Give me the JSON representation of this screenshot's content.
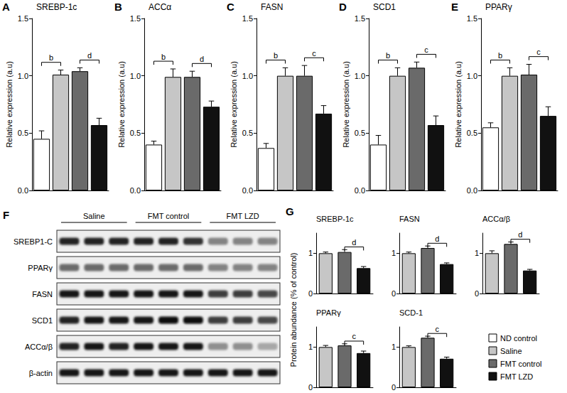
{
  "chart_data": [
    {
      "type": "bar",
      "panel": "A",
      "title": "SREBP-1c",
      "y_label": "Relative expression (a.u)",
      "categories": [
        "ND control",
        "Saline",
        "FMT control",
        "FMT LZD"
      ],
      "colors": [
        "#ffffff",
        "#c6c6c6",
        "#6a6a6a",
        "#111111"
      ],
      "values": [
        0.45,
        1.01,
        1.04,
        0.57
      ],
      "errors": [
        0.07,
        0.04,
        0.03,
        0.06
      ],
      "ylim": [
        0,
        1.5
      ],
      "yticks": [
        {
          "value": 0,
          "label": "0.0"
        },
        {
          "value": 0.5,
          "label": "0.5"
        },
        {
          "value": 1,
          "label": "1.0"
        },
        {
          "value": 1.5,
          "label": "1.5"
        }
      ],
      "significance": [
        {
          "between": [
            0,
            1
          ],
          "label": "b"
        },
        {
          "between": [
            2,
            3
          ],
          "label": "d"
        }
      ],
      "grid": false,
      "tick_labels": "y"
    },
    {
      "type": "bar",
      "panel": "B",
      "title": "ACCα",
      "y_label": "Relative expression (a.u)",
      "categories": [
        "ND control",
        "Saline",
        "FMT control",
        "FMT LZD"
      ],
      "colors": [
        "#ffffff",
        "#c6c6c6",
        "#6a6a6a",
        "#111111"
      ],
      "values": [
        0.4,
        0.99,
        0.99,
        0.73
      ],
      "errors": [
        0.03,
        0.07,
        0.05,
        0.05
      ],
      "ylim": [
        0,
        1.5
      ],
      "yticks": [
        {
          "value": 0,
          "label": "0.0"
        },
        {
          "value": 0.5,
          "label": "0.5"
        },
        {
          "value": 1,
          "label": "1.0"
        },
        {
          "value": 1.5,
          "label": "1.5"
        }
      ],
      "significance": [
        {
          "between": [
            0,
            1
          ],
          "label": "b"
        },
        {
          "between": [
            2,
            3
          ],
          "label": "d"
        }
      ],
      "grid": false,
      "tick_labels": "y"
    },
    {
      "type": "bar",
      "panel": "C",
      "title": "FASN",
      "y_label": "Relative expression (a.u)",
      "categories": [
        "ND control",
        "Saline",
        "FMT control",
        "FMT LZD"
      ],
      "colors": [
        "#ffffff",
        "#c6c6c6",
        "#6a6a6a",
        "#111111"
      ],
      "values": [
        0.37,
        1.0,
        1.0,
        0.67
      ],
      "errors": [
        0.04,
        0.07,
        0.09,
        0.07
      ],
      "ylim": [
        0,
        1.5
      ],
      "yticks": [
        {
          "value": 0,
          "label": "0.0"
        },
        {
          "value": 0.5,
          "label": "0.5"
        },
        {
          "value": 1,
          "label": "1.0"
        },
        {
          "value": 1.5,
          "label": "1.5"
        }
      ],
      "significance": [
        {
          "between": [
            0,
            1
          ],
          "label": "b"
        },
        {
          "between": [
            2,
            3
          ],
          "label": "c"
        }
      ],
      "grid": false,
      "tick_labels": "y"
    },
    {
      "type": "bar",
      "panel": "D",
      "title": "SCD1",
      "y_label": "Relative expression (a.u)",
      "categories": [
        "ND control",
        "Saline",
        "FMT control",
        "FMT LZD"
      ],
      "colors": [
        "#ffffff",
        "#c6c6c6",
        "#6a6a6a",
        "#111111"
      ],
      "values": [
        0.4,
        1.0,
        1.07,
        0.57
      ],
      "errors": [
        0.08,
        0.07,
        0.05,
        0.08
      ],
      "ylim": [
        0,
        1.5
      ],
      "yticks": [
        {
          "value": 0,
          "label": "0.0"
        },
        {
          "value": 0.5,
          "label": "0.5"
        },
        {
          "value": 1,
          "label": "1.0"
        },
        {
          "value": 1.5,
          "label": "1.5"
        }
      ],
      "significance": [
        {
          "between": [
            0,
            1
          ],
          "label": "b"
        },
        {
          "between": [
            2,
            3
          ],
          "label": "c"
        }
      ],
      "grid": false,
      "tick_labels": "y"
    },
    {
      "type": "bar",
      "panel": "E",
      "title": "PPARγ",
      "y_label": "Relative expression (a.u)",
      "categories": [
        "ND control",
        "Saline",
        "FMT control",
        "FMT LZD"
      ],
      "colors": [
        "#ffffff",
        "#c6c6c6",
        "#6a6a6a",
        "#111111"
      ],
      "values": [
        0.55,
        1.0,
        1.01,
        0.65
      ],
      "errors": [
        0.04,
        0.07,
        0.09,
        0.08
      ],
      "ylim": [
        0,
        1.5
      ],
      "yticks": [
        {
          "value": 0,
          "label": "0.0"
        },
        {
          "value": 0.5,
          "label": "0.5"
        },
        {
          "value": 1,
          "label": "1.0"
        },
        {
          "value": 1.5,
          "label": "1.5"
        }
      ],
      "significance": [
        {
          "between": [
            0,
            1
          ],
          "label": "b"
        },
        {
          "between": [
            2,
            3
          ],
          "label": "c"
        }
      ],
      "grid": false,
      "tick_labels": "y"
    },
    {
      "type": "bar",
      "title": "SREBP-1c",
      "categories": [
        "Saline",
        "FMT control",
        "FMT LZD"
      ],
      "colors": [
        "#c6c6c6",
        "#6a6a6a",
        "#111111"
      ],
      "values": [
        1.0,
        1.03,
        0.63
      ],
      "errors": [
        0.03,
        0.06,
        0.04
      ],
      "ylim": [
        0,
        1.5
      ],
      "yticks": [
        0,
        1
      ],
      "significance": [
        {
          "between": [
            1,
            2
          ],
          "label": "d"
        }
      ],
      "grid": false,
      "tick_labels": "y"
    },
    {
      "type": "bar",
      "title": "FASN",
      "categories": [
        "Saline",
        "FMT control",
        "FMT LZD"
      ],
      "colors": [
        "#c6c6c6",
        "#6a6a6a",
        "#111111"
      ],
      "values": [
        1.0,
        1.13,
        0.73
      ],
      "errors": [
        0.03,
        0.05,
        0.03
      ],
      "ylim": [
        0,
        1.5
      ],
      "yticks": [
        0,
        1
      ],
      "significance": [
        {
          "between": [
            1,
            2
          ],
          "label": "d"
        }
      ],
      "grid": false,
      "tick_labels": "y"
    },
    {
      "type": "bar",
      "title": "ACCα/β",
      "categories": [
        "Saline",
        "FMT control",
        "FMT LZD"
      ],
      "colors": [
        "#c6c6c6",
        "#6a6a6a",
        "#111111"
      ],
      "values": [
        1.0,
        1.23,
        0.57
      ],
      "errors": [
        0.06,
        0.05,
        0.03
      ],
      "ylim": [
        0,
        1.5
      ],
      "yticks": [
        0,
        1
      ],
      "significance": [
        {
          "between": [
            1,
            2
          ],
          "label": "d"
        }
      ],
      "grid": false,
      "tick_labels": "y"
    },
    {
      "type": "bar",
      "title": "PPARγ",
      "categories": [
        "Saline",
        "FMT control",
        "FMT LZD"
      ],
      "colors": [
        "#c6c6c6",
        "#6a6a6a",
        "#111111"
      ],
      "values": [
        1.0,
        1.04,
        0.85
      ],
      "errors": [
        0.04,
        0.04,
        0.05
      ],
      "ylim": [
        0,
        1.5
      ],
      "yticks": [
        0,
        1
      ],
      "significance": [
        {
          "between": [
            1,
            2
          ],
          "label": "c"
        }
      ],
      "grid": false,
      "tick_labels": "y"
    },
    {
      "type": "bar",
      "title": "SCD-1",
      "categories": [
        "Saline",
        "FMT control",
        "FMT LZD"
      ],
      "colors": [
        "#c6c6c6",
        "#6a6a6a",
        "#111111"
      ],
      "values": [
        1.0,
        1.23,
        0.71
      ],
      "errors": [
        0.03,
        0.04,
        0.04
      ],
      "ylim": [
        0,
        1.5
      ],
      "yticks": [
        0,
        1
      ],
      "significance": [
        {
          "between": [
            1,
            2
          ],
          "label": "c"
        }
      ],
      "grid": false,
      "tick_labels": "y"
    }
  ],
  "protein_panel": {
    "panel": "G",
    "y_label": "Protein abundance (% of control)"
  },
  "legend_key": {
    "labels": [
      "ND control",
      "Saline",
      "FMT control",
      "FMT LZD"
    ],
    "colors": [
      "#ffffff",
      "#c6c6c6",
      "#6a6a6a",
      "#111111"
    ]
  },
  "blot": {
    "panel": "F",
    "groups": [
      "Saline",
      "FMT control",
      "FMT LZD"
    ],
    "rows": [
      {
        "label": "SREBP1-C",
        "band_intensity": [
          0.85,
          0.85,
          0.85,
          0.85,
          0.85,
          0.8,
          0.45,
          0.45,
          0.45
        ]
      },
      {
        "label": "PPARγ",
        "band_intensity": [
          0.55,
          0.55,
          0.55,
          0.55,
          0.55,
          0.55,
          0.45,
          0.45,
          0.45
        ]
      },
      {
        "label": "FASN",
        "band_intensity": [
          0.9,
          0.9,
          0.9,
          0.9,
          0.9,
          0.9,
          0.75,
          0.75,
          0.7
        ]
      },
      {
        "label": "SCD1",
        "band_intensity": [
          0.85,
          0.9,
          0.9,
          0.9,
          0.95,
          0.95,
          0.75,
          0.75,
          0.7
        ]
      },
      {
        "label": "ACCα/β",
        "band_intensity": [
          0.85,
          0.9,
          0.85,
          0.9,
          0.9,
          0.9,
          0.4,
          0.4,
          0.3
        ]
      },
      {
        "label": "β-actin",
        "band_intensity": [
          0.9,
          0.9,
          0.9,
          0.9,
          0.9,
          0.9,
          0.9,
          0.9,
          0.9
        ]
      }
    ]
  }
}
